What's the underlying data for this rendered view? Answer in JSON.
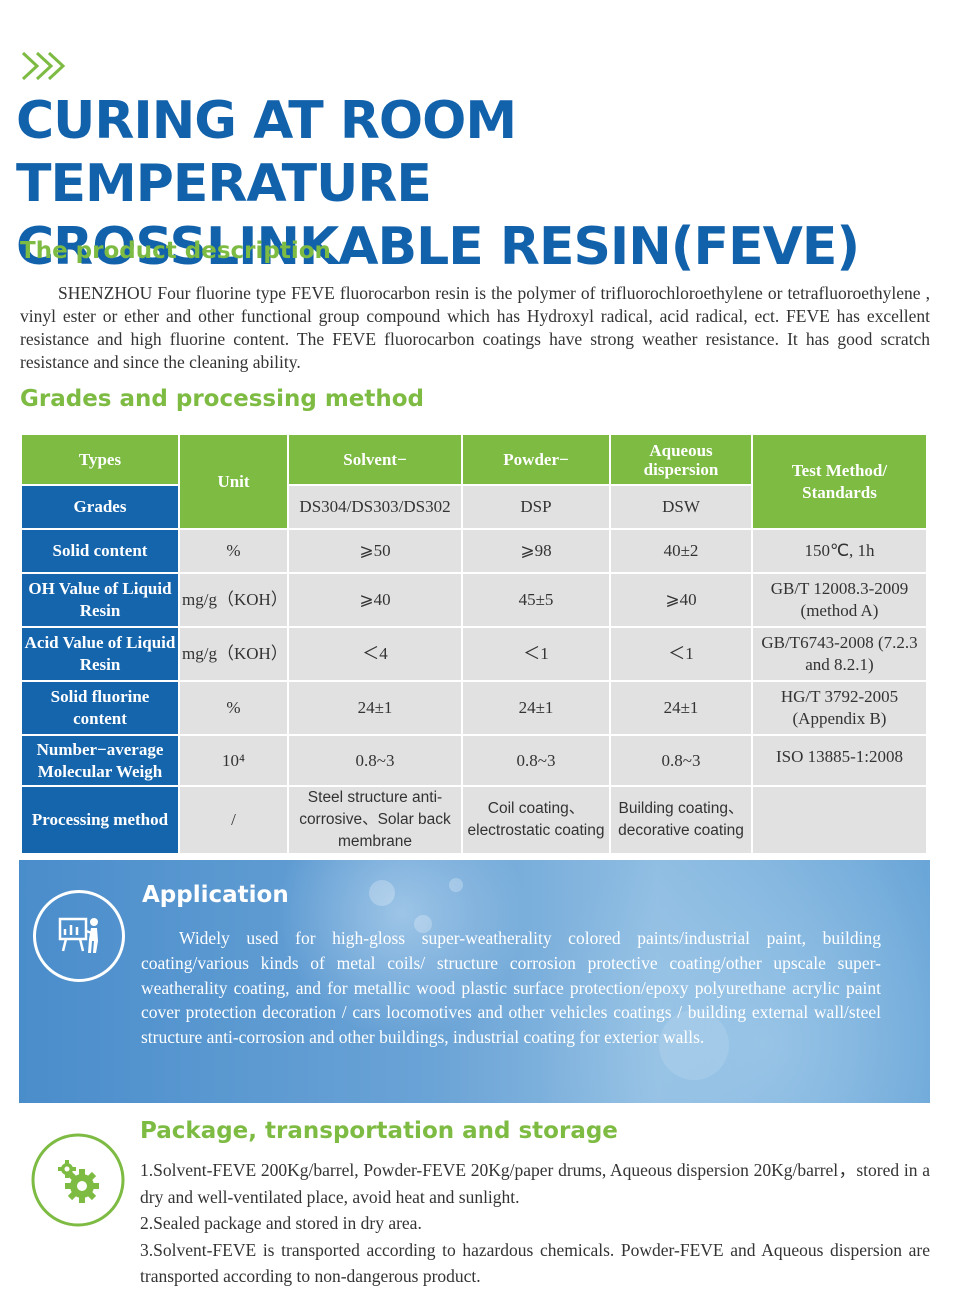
{
  "title_line1": "CURING AT ROOM TEMPERATURE",
  "title_line2": "CROSSLINKABLE RESIN(FEVE)",
  "description": {
    "heading": "The product description",
    "text": "SHENZHOU Four fluorine type FEVE fluorocarbon resin is the polymer of trifluorochloroethylene or tetrafluoroethylene , vinyl ester or ether and other functional group compound which has Hydroxyl radical, acid radical, ect. FEVE has excellent resistance and high fluorine content. The FEVE fluorocarbon coatings have strong weather resistance. It has good scratch resistance and since the cleaning ability."
  },
  "grades": {
    "heading": "Grades and processing method",
    "header": {
      "types": "Types",
      "grades": "Grades",
      "unit": "Unit",
      "solvent": "Solvent−",
      "powder": "Powder−",
      "aqueous": "Aqueous dispersion",
      "test": "Test Method/ Standards",
      "solvent_grade": "DS304/DS303/DS302",
      "powder_grade": "DSP",
      "aqueous_grade": "DSW"
    },
    "rows": [
      {
        "label": "Solid content",
        "unit": "%",
        "solvent": "⩾50",
        "powder": "⩾98",
        "aqueous": "40±2",
        "test": "150℃, 1h"
      },
      {
        "label": "OH Value of Liquid Resin",
        "unit": "mg/g（KOH）",
        "solvent": "⩾40",
        "powder": "45±5",
        "aqueous": "⩾40",
        "test": "GB/T 12008.3-2009 (method A)"
      },
      {
        "label": "Acid Value of Liquid Resin",
        "unit": "mg/g（KOH）",
        "solvent": "＜4",
        "powder": "＜1",
        "aqueous": "＜1",
        "test": "GB/T6743-2008 (7.2.3 and 8.2.1)"
      },
      {
        "label": "Solid fluorine content",
        "unit": "%",
        "solvent": "24±1",
        "powder": "24±1",
        "aqueous": "24±1",
        "test": "HG/T 3792-2005 (Appendix B)"
      },
      {
        "label": "Number−average Molecular Weigh",
        "unit": "10⁴",
        "solvent": "0.8~3",
        "powder": "0.8~3",
        "aqueous": "0.8~3",
        "test": "ISO 13885-1:2008"
      },
      {
        "label": "Processing method",
        "unit": "/",
        "solvent": "Steel structure anti-corrosive、Solar back membrane",
        "powder": "Coil coating、electrostatic coating",
        "aqueous": "Building coating、decorative coating",
        "test": ""
      }
    ]
  },
  "application": {
    "heading": "Application",
    "icon": "presentation-icon",
    "text": "Widely used for high-gloss super-weatherality colored paints/industrial paint, building coating/various kinds of metal coils/ structure corrosion protective coating/other upscale super-weatherality coating, and for metallic wood plastic surface protection/epoxy polyurethane acrylic paint cover protection decoration / cars locomotives and other vehicles coatings / building external wall/steel structure anti-corrosion and other buildings, industrial coating for exterior walls."
  },
  "package": {
    "heading": "Package, transportation and storage",
    "icon": "gears-icon",
    "items": [
      "1.Solvent-FEVE 200Kg/barrel, Powder-FEVE 20Kg/paper drums, Aqueous dispersion 20Kg/barrel，stored in a dry and well-ventilated place, avoid heat and sunlight.",
      "2.Sealed package and stored in dry area.",
      "3.Solvent-FEVE is transported according to hazardous chemicals. Powder-FEVE and Aqueous dispersion are transported according to non-dangerous product."
    ]
  },
  "colors": {
    "blue": "#1262ab",
    "green": "#7dbb43",
    "cell": "#e1e1e1"
  }
}
